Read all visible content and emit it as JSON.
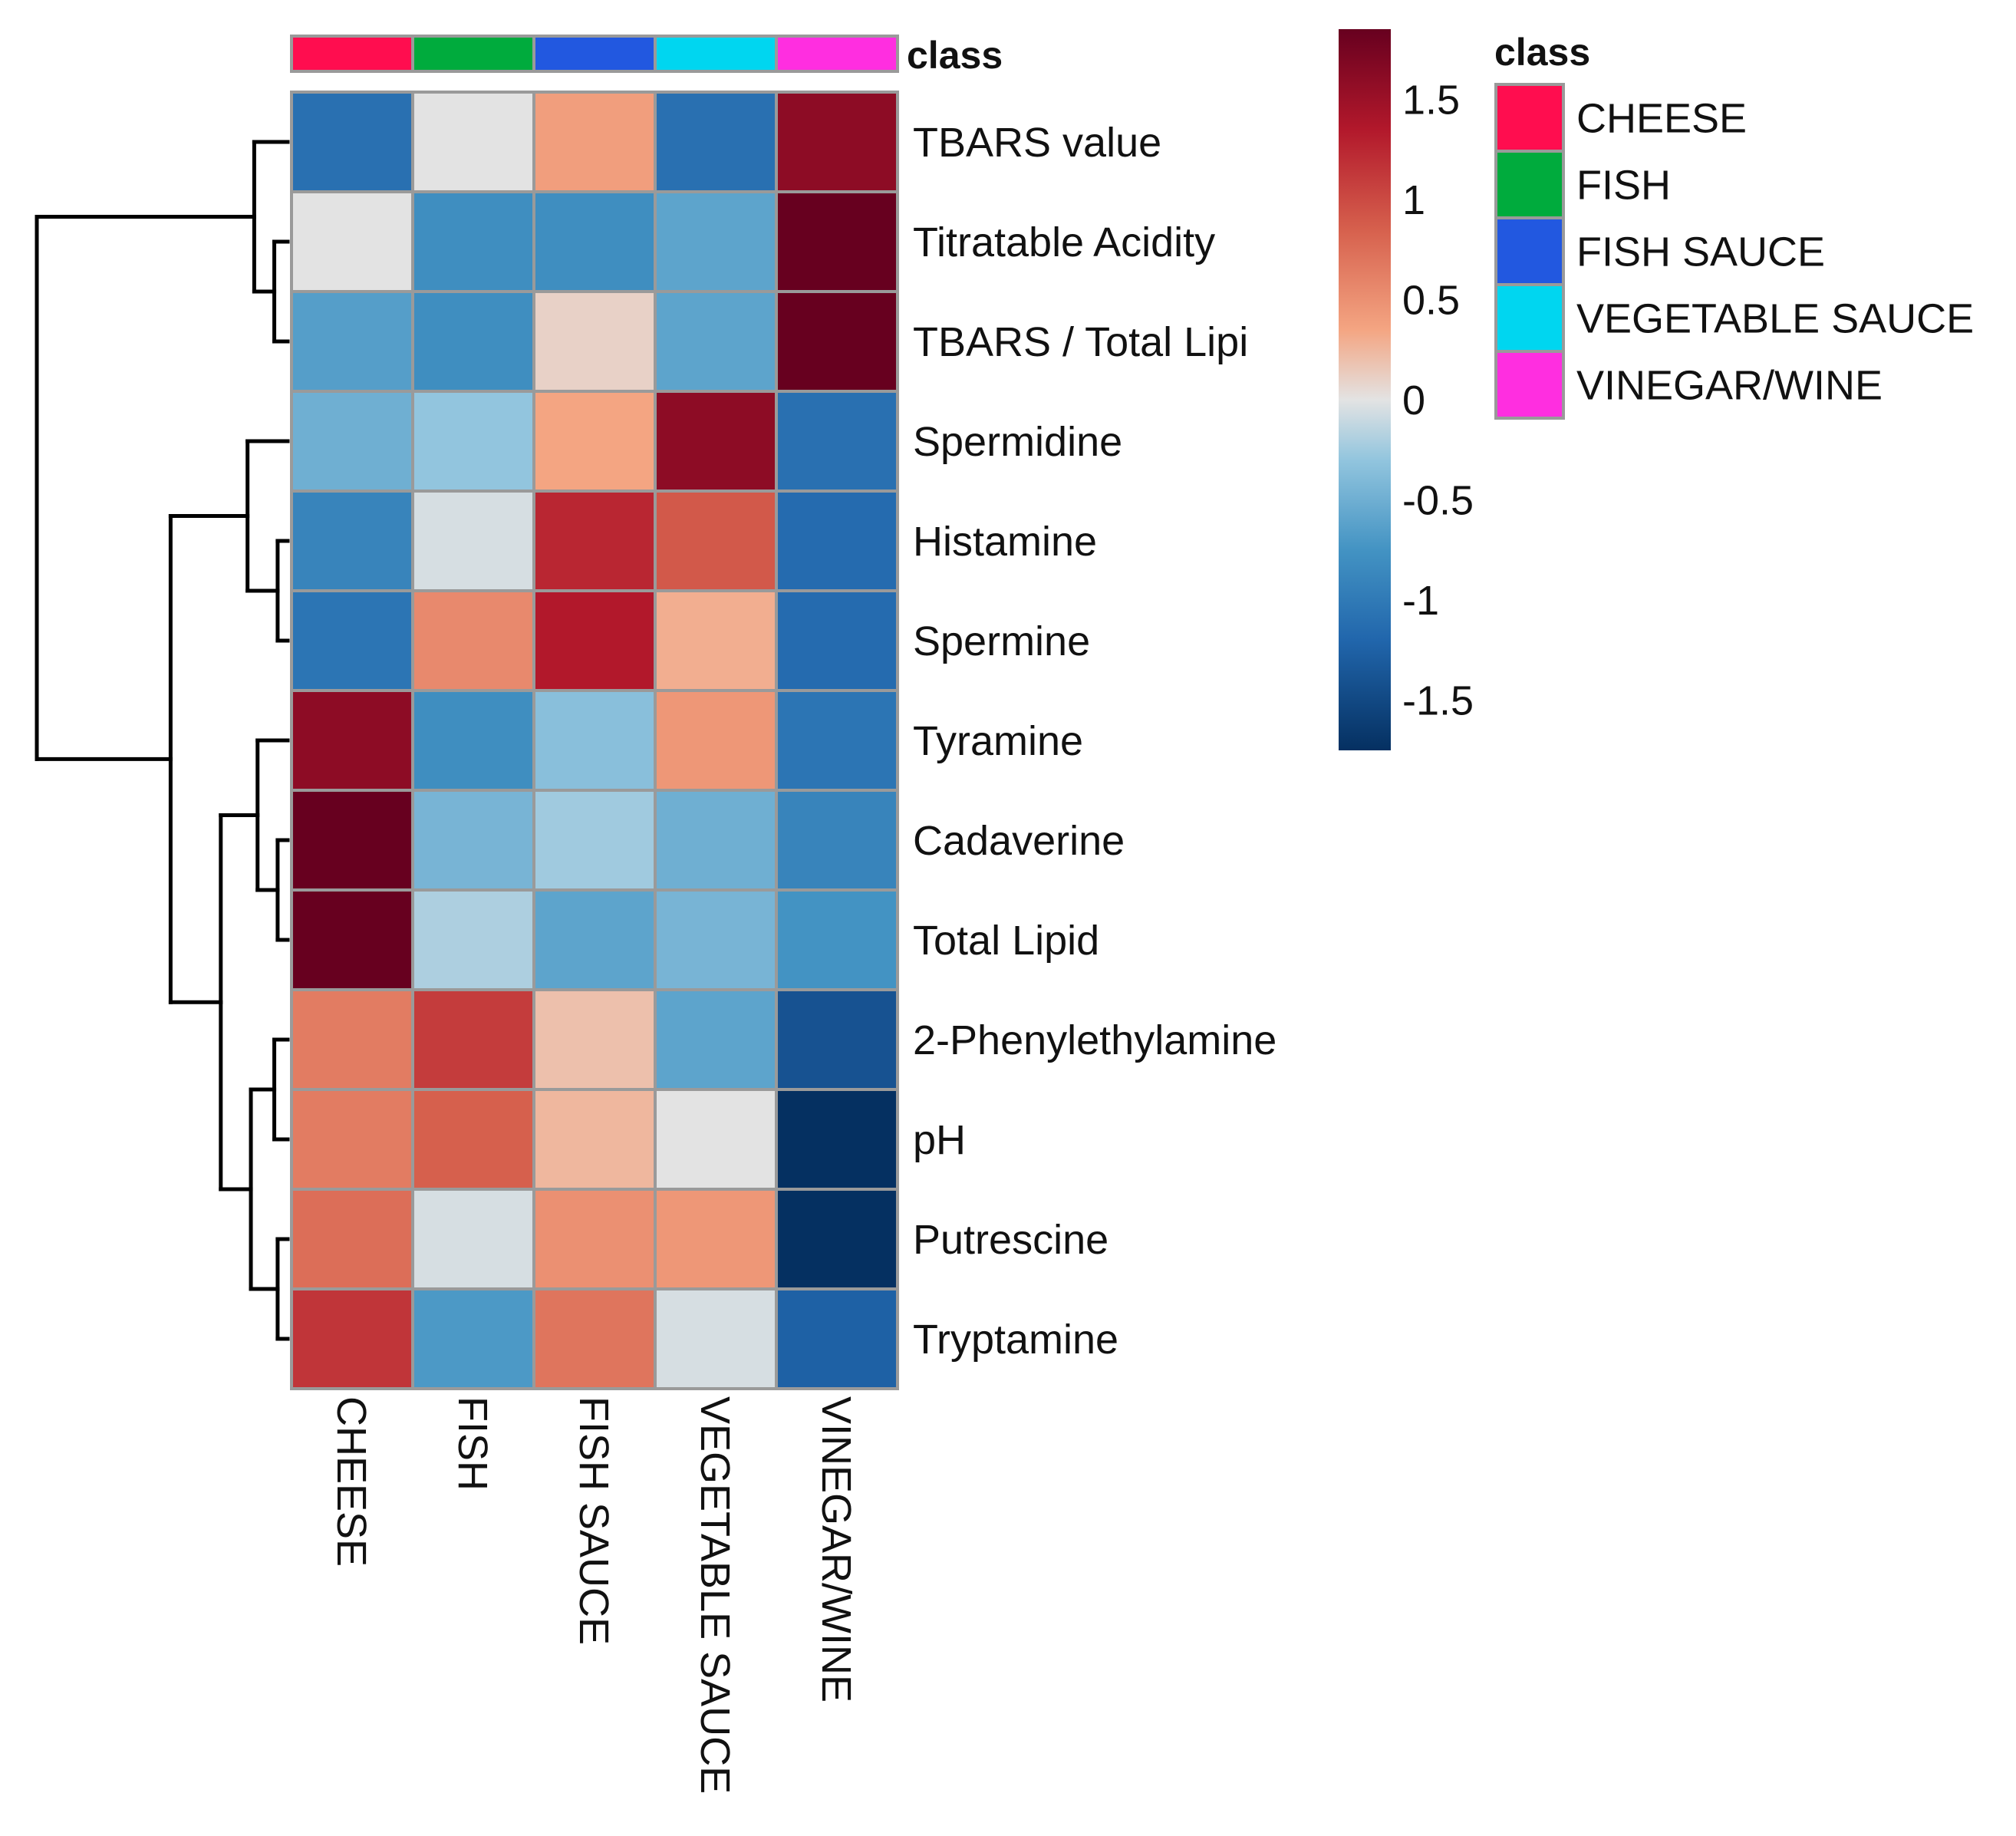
{
  "chart_data": {
    "type": "heatmap",
    "columns": [
      "CHEESE",
      "FISH",
      "FISH SAUCE",
      "VEGETABLE SAUCE",
      "VINEGAR/WINE"
    ],
    "rows": [
      {
        "label": "TBARS value",
        "values": [
          -1.1,
          0.0,
          0.4,
          -1.1,
          1.6
        ]
      },
      {
        "label": "Titratable Acidity",
        "values": [
          0.0,
          -0.8,
          -0.8,
          -0.6,
          1.85
        ]
      },
      {
        "label": "TBARS / Total Lipi",
        "values": [
          -0.65,
          -0.8,
          0.1,
          -0.6,
          1.85
        ]
      },
      {
        "label": "Spermidine",
        "values": [
          -0.5,
          -0.3,
          0.35,
          1.6,
          -1.1
        ]
      },
      {
        "label": "Histamine",
        "values": [
          -0.9,
          -0.05,
          1.25,
          0.9,
          -1.15
        ]
      },
      {
        "label": "Spermine",
        "values": [
          -1.05,
          0.55,
          1.35,
          0.3,
          -1.15
        ]
      },
      {
        "label": "Tyramine",
        "values": [
          1.6,
          -0.8,
          -0.35,
          0.45,
          -1.05
        ]
      },
      {
        "label": "Cadaverine",
        "values": [
          1.85,
          -0.45,
          -0.25,
          -0.5,
          -0.9
        ]
      },
      {
        "label": "Total Lipid",
        "values": [
          1.85,
          -0.2,
          -0.6,
          -0.45,
          -0.75
        ]
      },
      {
        "label": "2-Phenylethylamine",
        "values": [
          0.65,
          1.1,
          0.2,
          -0.6,
          -1.4
        ]
      },
      {
        "label": "pH",
        "values": [
          0.65,
          0.85,
          0.25,
          0.0,
          -1.85
        ]
      },
      {
        "label": "Putrescine",
        "values": [
          0.75,
          -0.05,
          0.5,
          0.45,
          -1.85
        ]
      },
      {
        "label": "Tryptamine",
        "values": [
          1.15,
          -0.7,
          0.7,
          -0.05,
          -1.25
        ]
      }
    ],
    "color_scale": {
      "min": -1.75,
      "max": 1.85,
      "stops": [
        {
          "value": -1.75,
          "color": "#053061"
        },
        {
          "value": -1.2,
          "color": "#2166ac"
        },
        {
          "value": -0.75,
          "color": "#4393c3"
        },
        {
          "value": -0.3,
          "color": "#92c5de"
        },
        {
          "value": 0,
          "color": "#e3e3e3"
        },
        {
          "value": 0.35,
          "color": "#f4a582"
        },
        {
          "value": 0.85,
          "color": "#d6604d"
        },
        {
          "value": 1.35,
          "color": "#b2182b"
        },
        {
          "value": 1.85,
          "color": "#67001f"
        }
      ]
    },
    "colorbar_ticks": [
      "1.5",
      "1",
      "0.5",
      "0",
      "-0.5",
      "-1",
      "-1.5"
    ],
    "colorbar_tick_values": [
      1.5,
      1,
      0.5,
      0,
      -0.5,
      -1,
      -1.5
    ],
    "annotation": {
      "title": "class",
      "classes": [
        {
          "name": "CHEESE",
          "color": "#ff0d4f"
        },
        {
          "name": "FISH",
          "color": "#00ab3d"
        },
        {
          "name": "FISH SAUCE",
          "color": "#2258e0"
        },
        {
          "name": "VEGETABLE SAUCE",
          "color": "#00d6f0"
        },
        {
          "name": "VINEGAR/WINE",
          "color": "#ff2ee0"
        }
      ]
    },
    "legend_title": "class",
    "row_dendrogram": {
      "order": [
        "TBARS value",
        "Titratable Acidity",
        "TBARS / Total Lipi",
        "Spermidine",
        "Histamine",
        "Spermine",
        "Tyramine",
        "Cadaverine",
        "Total Lipid",
        "2-Phenylethylamine",
        "pH",
        "Putrescine",
        "Tryptamine"
      ],
      "merges": [
        [
          1,
          2,
          0.04
        ],
        [
          0,
          13,
          0.1
        ],
        [
          4,
          5,
          0.03
        ],
        [
          3,
          15,
          0.12
        ],
        [
          7,
          8,
          0.03
        ],
        [
          6,
          17,
          0.09
        ],
        [
          9,
          10,
          0.04
        ],
        [
          11,
          12,
          0.03
        ],
        [
          19,
          20,
          0.11
        ],
        [
          18,
          21,
          0.2
        ],
        [
          16,
          22,
          0.35
        ],
        [
          14,
          23,
          0.75
        ]
      ],
      "max_height": 0.75
    }
  }
}
